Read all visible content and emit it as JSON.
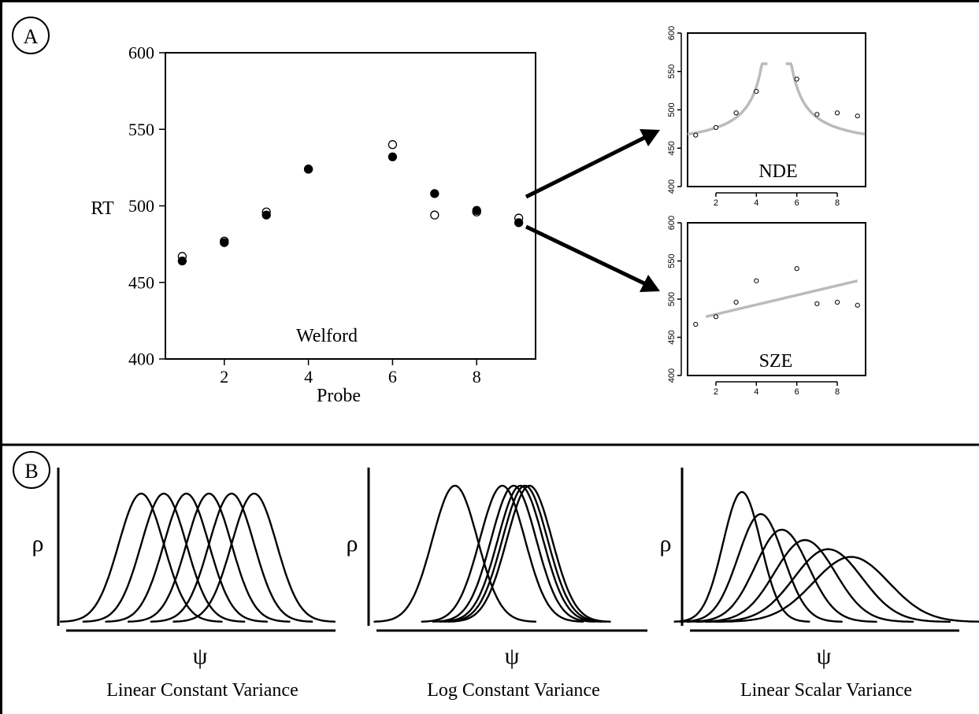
{
  "panels": {
    "a_label": "A",
    "b_label": "B"
  },
  "chart_data": [
    {
      "type": "scatter",
      "title": "Welford",
      "xlabel": "Probe",
      "ylabel": "RT",
      "xlim": [
        0.6,
        9.4
      ],
      "ylim": [
        400,
        600
      ],
      "xticks": [
        "2",
        "4",
        "6",
        "8"
      ],
      "yticks": [
        "400",
        "450",
        "500",
        "550",
        "600"
      ],
      "series": [
        {
          "marker": "open",
          "points": [
            [
              1,
              467
            ],
            [
              2,
              477
            ],
            [
              3,
              496
            ],
            [
              4,
              524
            ],
            [
              6,
              540
            ],
            [
              7,
              494
            ],
            [
              8,
              496
            ],
            [
              9,
              492
            ]
          ]
        },
        {
          "marker": "filled",
          "points": [
            [
              1,
              464
            ],
            [
              2,
              476
            ],
            [
              3,
              494
            ],
            [
              4,
              524
            ],
            [
              6,
              532
            ],
            [
              7,
              508
            ],
            [
              8,
              497
            ],
            [
              9,
              489
            ]
          ]
        }
      ],
      "arrow_color": "#000000"
    },
    {
      "type": "scatter",
      "title": "NDE",
      "xlim": [
        0.6,
        9.4
      ],
      "ylim": [
        400,
        600
      ],
      "xticks": [
        "2",
        "4",
        "6",
        "8"
      ],
      "yticks": [
        "400",
        "450",
        "500",
        "550",
        "600"
      ],
      "points": [
        [
          1,
          467
        ],
        [
          2,
          477
        ],
        [
          3,
          496
        ],
        [
          4,
          524
        ],
        [
          6,
          540
        ],
        [
          7,
          494
        ],
        [
          8,
          496
        ],
        [
          9,
          492
        ]
      ],
      "fit": {
        "shape": "two-branch hyperbola",
        "asymptote_x": 5,
        "color": "#bbbbbb"
      }
    },
    {
      "type": "scatter",
      "title": "SZE",
      "xlim": [
        0.6,
        9.4
      ],
      "ylim": [
        400,
        600
      ],
      "xticks": [
        "2",
        "4",
        "6",
        "8"
      ],
      "yticks": [
        "400",
        "450",
        "500",
        "550",
        "600"
      ],
      "points": [
        [
          1,
          467
        ],
        [
          2,
          477
        ],
        [
          3,
          496
        ],
        [
          4,
          524
        ],
        [
          6,
          540
        ],
        [
          7,
          494
        ],
        [
          8,
          496
        ],
        [
          9,
          492
        ]
      ],
      "fit": {
        "shape": "linear",
        "from": [
          1.5,
          477
        ],
        "to": [
          9,
          524
        ],
        "color": "#bbbbbb"
      }
    },
    {
      "type": "line",
      "title": "Linear Constant Variance",
      "xlabel": "ψ",
      "ylabel": "ρ",
      "curves": [
        {
          "mean": 5.0,
          "sd": 1.0
        },
        {
          "mean": 6.0,
          "sd": 1.0
        },
        {
          "mean": 7.0,
          "sd": 1.0
        },
        {
          "mean": 8.0,
          "sd": 1.0
        },
        {
          "mean": 9.0,
          "sd": 1.0
        },
        {
          "mean": 10.0,
          "sd": 1.0
        }
      ],
      "xrange": [
        0,
        15
      ]
    },
    {
      "type": "line",
      "title": "Log Constant Variance",
      "xlabel": "ψ",
      "ylabel": "ρ",
      "curves": [
        {
          "mean": 5.5,
          "sd": 1.0
        },
        {
          "mean": 7.6,
          "sd": 1.0
        },
        {
          "mean": 8.1,
          "sd": 1.0
        },
        {
          "mean": 8.4,
          "sd": 1.0
        },
        {
          "mean": 8.6,
          "sd": 1.0
        },
        {
          "mean": 8.8,
          "sd": 1.0
        }
      ],
      "xrange": [
        0,
        15
      ]
    },
    {
      "type": "line",
      "title": "Linear Scalar Variance",
      "xlabel": "ψ",
      "ylabel": "ρ",
      "curves": [
        {
          "mean": 4.2,
          "sd": 0.9,
          "peak": 1.0
        },
        {
          "mean": 5.1,
          "sd": 1.08,
          "peak": 0.83
        },
        {
          "mean": 6.1,
          "sd": 1.26,
          "peak": 0.71
        },
        {
          "mean": 7.2,
          "sd": 1.44,
          "peak": 0.63
        },
        {
          "mean": 8.3,
          "sd": 1.62,
          "peak": 0.56
        },
        {
          "mean": 9.4,
          "sd": 1.8,
          "peak": 0.5
        }
      ],
      "xrange": [
        0,
        15
      ]
    }
  ]
}
